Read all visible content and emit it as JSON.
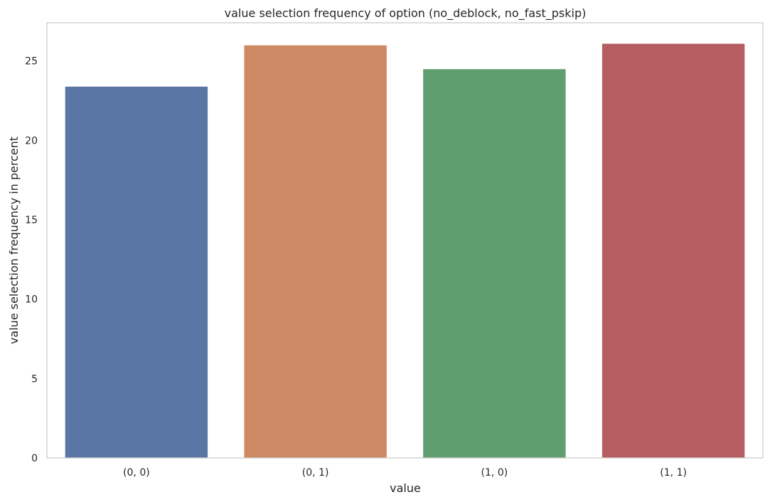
{
  "chart_data": {
    "type": "bar",
    "title": "value selection frequency of option (no_deblock, no_fast_pskip)",
    "xlabel": "value",
    "ylabel": "value selection frequency in percent",
    "categories": [
      "(0, 0)",
      "(0, 1)",
      "(1, 0)",
      "(1, 1)"
    ],
    "values": [
      23.4,
      26.0,
      24.5,
      26.1
    ],
    "colors": [
      "#5975a4",
      "#cc8963",
      "#5f9e6e",
      "#b55d60"
    ],
    "ylim": [
      0,
      27.4
    ],
    "yticks": [
      0,
      5,
      10,
      15,
      20,
      25
    ],
    "grid": false,
    "legend": "none"
  }
}
